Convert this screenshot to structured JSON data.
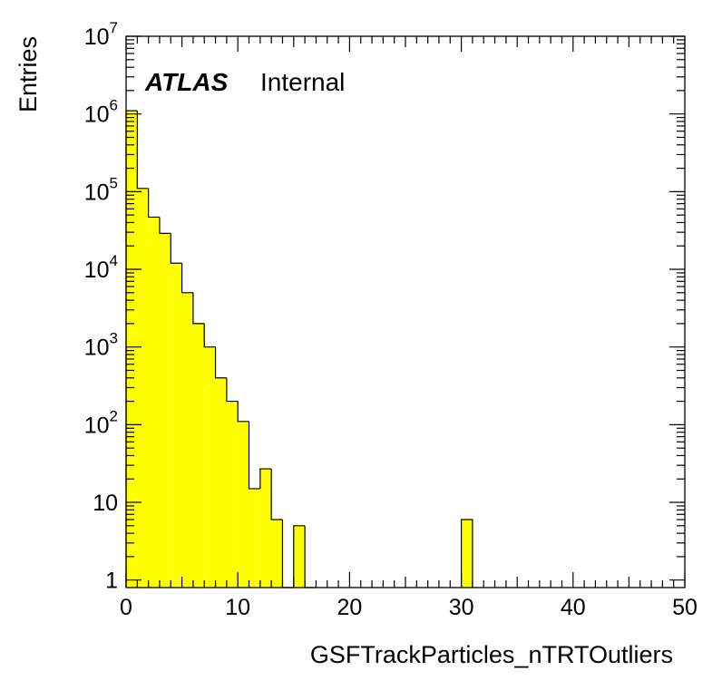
{
  "chart_data": {
    "type": "bar",
    "histogram": true,
    "xlabel": "GSFTrackParticles_nTRTOutliers",
    "ylabel": "Entries",
    "xlim": [
      0,
      50
    ],
    "ylim": [
      0.8,
      10000000
    ],
    "log_y": true,
    "grid": false,
    "bin_width": 1,
    "x_ticks": [
      0,
      10,
      20,
      30,
      40,
      50
    ],
    "y_ticks": [
      {
        "value": 1,
        "base": "1",
        "exp": ""
      },
      {
        "value": 10,
        "base": "10",
        "exp": ""
      },
      {
        "value": 100,
        "base": "10",
        "exp": "2"
      },
      {
        "value": 1000,
        "base": "10",
        "exp": "3"
      },
      {
        "value": 10000,
        "base": "10",
        "exp": "4"
      },
      {
        "value": 100000,
        "base": "10",
        "exp": "5"
      },
      {
        "value": 1000000,
        "base": "10",
        "exp": "6"
      },
      {
        "value": 10000000,
        "base": "10",
        "exp": "7"
      }
    ],
    "fill_color": "#ffff00",
    "line_color": "#000000",
    "annotation": {
      "experiment": "ATLAS",
      "status": "Internal"
    },
    "bins": [
      {
        "x": 0,
        "y": 1100000
      },
      {
        "x": 1,
        "y": 110000
      },
      {
        "x": 2,
        "y": 47000
      },
      {
        "x": 3,
        "y": 29000
      },
      {
        "x": 4,
        "y": 12000
      },
      {
        "x": 5,
        "y": 5000
      },
      {
        "x": 6,
        "y": 2000
      },
      {
        "x": 7,
        "y": 1000
      },
      {
        "x": 8,
        "y": 400
      },
      {
        "x": 9,
        "y": 200
      },
      {
        "x": 10,
        "y": 110
      },
      {
        "x": 11,
        "y": 15
      },
      {
        "x": 12,
        "y": 27
      },
      {
        "x": 13,
        "y": 6
      },
      {
        "x": 14,
        "y": 0
      },
      {
        "x": 15,
        "y": 5
      },
      {
        "x": 16,
        "y": 0
      },
      {
        "x": 30,
        "y": 6
      }
    ]
  }
}
